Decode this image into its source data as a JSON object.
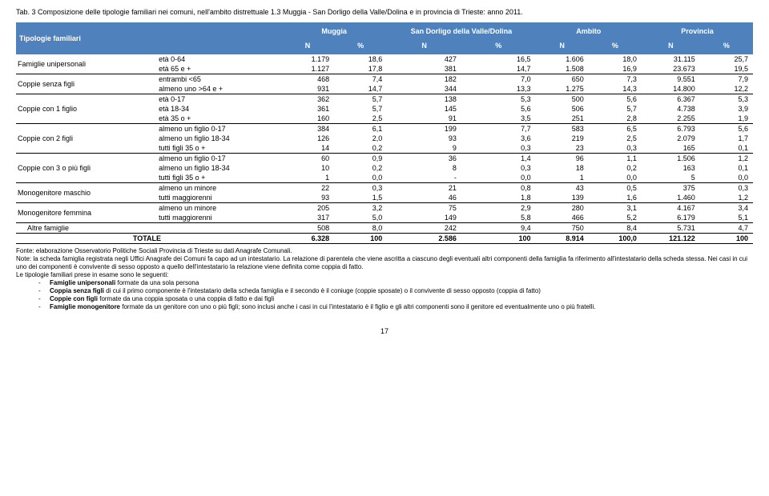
{
  "caption": "Tab. 3 Composizione delle tipologie familiari nei comuni, nell'ambito distrettuale 1.3 Muggia - San Dorligo della Valle/Dolina e in provincia di Trieste: anno 2011.",
  "header": {
    "left": "Tipologie familiari",
    "cols": [
      "Muggia",
      "San Dorligo della Valle/Dolina",
      "Ambito",
      "Provincia"
    ],
    "sub": [
      "N",
      "%",
      "N",
      "%",
      "N",
      "%",
      "N",
      "%"
    ]
  },
  "groups": [
    {
      "cat": "Famiglie unipersonali",
      "rows": [
        {
          "sub": "età 0-64",
          "v": [
            "1.179",
            "18,6",
            "427",
            "16,5",
            "1.606",
            "18,0",
            "31.115",
            "25,7"
          ]
        },
        {
          "sub": "età 65 e +",
          "v": [
            "1.127",
            "17,8",
            "381",
            "14,7",
            "1.508",
            "16,9",
            "23.673",
            "19,5"
          ]
        }
      ]
    },
    {
      "cat": "Coppie senza figli",
      "rows": [
        {
          "sub": "entrambi <65",
          "v": [
            "468",
            "7,4",
            "182",
            "7,0",
            "650",
            "7,3",
            "9.551",
            "7,9"
          ]
        },
        {
          "sub": "almeno uno >64 e +",
          "v": [
            "931",
            "14,7",
            "344",
            "13,3",
            "1.275",
            "14,3",
            "14.800",
            "12,2"
          ]
        }
      ]
    },
    {
      "cat": "Coppie con 1 figlio",
      "rows": [
        {
          "sub": "età 0-17",
          "v": [
            "362",
            "5,7",
            "138",
            "5,3",
            "500",
            "5,6",
            "6.367",
            "5,3"
          ]
        },
        {
          "sub": "età 18-34",
          "v": [
            "361",
            "5,7",
            "145",
            "5,6",
            "506",
            "5,7",
            "4.738",
            "3,9"
          ]
        },
        {
          "sub": "età 35 o +",
          "v": [
            "160",
            "2,5",
            "91",
            "3,5",
            "251",
            "2,8",
            "2.255",
            "1,9"
          ]
        }
      ]
    },
    {
      "cat": "Coppie con 2 figli",
      "rows": [
        {
          "sub": "almeno un figlio 0-17",
          "v": [
            "384",
            "6,1",
            "199",
            "7,7",
            "583",
            "6,5",
            "6.793",
            "5,6"
          ]
        },
        {
          "sub": "almeno un figlio 18-34",
          "v": [
            "126",
            "2,0",
            "93",
            "3,6",
            "219",
            "2,5",
            "2.079",
            "1,7"
          ]
        },
        {
          "sub": "tutti figli 35 o +",
          "v": [
            "14",
            "0,2",
            "9",
            "0,3",
            "23",
            "0,3",
            "165",
            "0,1"
          ]
        }
      ]
    },
    {
      "cat": "Coppie con 3 o più figli",
      "rows": [
        {
          "sub": "almeno un figlio 0-17",
          "v": [
            "60",
            "0,9",
            "36",
            "1,4",
            "96",
            "1,1",
            "1.506",
            "1,2"
          ]
        },
        {
          "sub": "almeno un figlio 18-34",
          "v": [
            "10",
            "0,2",
            "8",
            "0,3",
            "18",
            "0,2",
            "163",
            "0,1"
          ]
        },
        {
          "sub": "tutti figli 35 o +",
          "v": [
            "1",
            "0,0",
            "-",
            "0,0",
            "1",
            "0,0",
            "5",
            "0,0"
          ]
        }
      ]
    },
    {
      "cat": "Monogenitore maschio",
      "rows": [
        {
          "sub": "almeno un minore",
          "v": [
            "22",
            "0,3",
            "21",
            "0,8",
            "43",
            "0,5",
            "375",
            "0,3"
          ]
        },
        {
          "sub": "tutti maggiorenni",
          "v": [
            "93",
            "1,5",
            "46",
            "1,8",
            "139",
            "1,6",
            "1.460",
            "1,2"
          ]
        }
      ]
    },
    {
      "cat": "Monogenitore femmina",
      "rows": [
        {
          "sub": "almeno un minore",
          "v": [
            "205",
            "3,2",
            "75",
            "2,9",
            "280",
            "3,1",
            "4.167",
            "3,4"
          ]
        },
        {
          "sub": "tutti maggiorenni",
          "v": [
            "317",
            "5,0",
            "149",
            "5,8",
            "466",
            "5,2",
            "6.179",
            "5,1"
          ]
        }
      ]
    }
  ],
  "altre": {
    "cat": "Altre famiglie",
    "v": [
      "508",
      "8,0",
      "242",
      "9,4",
      "750",
      "8,4",
      "5.731",
      "4,7"
    ]
  },
  "totale": {
    "label": "TOTALE",
    "v": [
      "6.328",
      "100",
      "2.586",
      "100",
      "8.914",
      "100,0",
      "121.122",
      "100"
    ]
  },
  "notes": {
    "fonte": "Fonte: elaborazione Osservatorio Politiche Sociali Provincia di Trieste su dati Anagrafe Comunali.",
    "note": "Note: la scheda famiglia registrata negli Uffici Anagrafe dei Comuni fa capo ad un intestatario. La relazione di parentela che viene ascritta a ciascuno degli eventuali altri componenti della famiglia fa riferimento all'intestatario della scheda stessa. Nei casi in cui uno dei componenti è convivente di sesso opposto a quello dell'intestatario la relazione viene definita come coppia di fatto.",
    "defs_intro": "Le tipologie familiari prese in esame sono le seguenti:",
    "defs": [
      {
        "b": "Famiglie unipersonali",
        "t": " formate da una sola persona"
      },
      {
        "b": "Coppia senza figli",
        "t": " di cui il primo componente è l'intestatario della scheda famiglia e il secondo è il coniuge (coppie sposate) o il convivente di sesso opposto (coppia di fatto)"
      },
      {
        "b": "Coppie con figli",
        "t": " formate da una coppia sposata o una coppia di fatto e dai figli"
      },
      {
        "b": "Famiglie monogenitore",
        "t": " formate da un genitore con uno o più figli; sono inclusi anche i casi in cui l'intestatario è il figlio e gli altri componenti sono il genitore ed eventualmente uno o più fratelli."
      }
    ]
  },
  "pagenum": "17",
  "colors": {
    "header_bg": "#4f81bd",
    "header_fg": "#ffffff"
  }
}
